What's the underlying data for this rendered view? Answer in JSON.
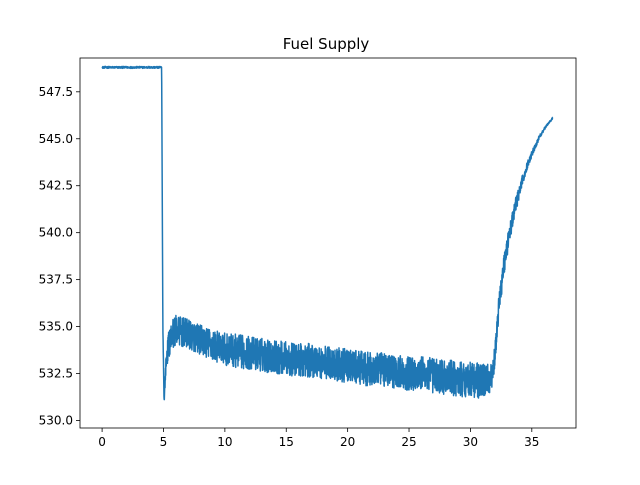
{
  "chart_data": {
    "type": "line",
    "title": "Fuel Supply",
    "xlabel": "",
    "ylabel": "",
    "xlim": [
      -1.8,
      38.6
    ],
    "ylim": [
      529.6,
      549.3
    ],
    "x_ticks": [
      0,
      5,
      10,
      15,
      20,
      25,
      30,
      35
    ],
    "x_tick_labels": [
      "0",
      "5",
      "10",
      "15",
      "20",
      "25",
      "30",
      "35"
    ],
    "y_ticks": [
      530.0,
      532.5,
      535.0,
      537.5,
      540.0,
      542.5,
      545.0,
      547.5
    ],
    "y_tick_labels": [
      "530.0",
      "532.5",
      "535.0",
      "537.5",
      "540.0",
      "542.5",
      "545.0",
      "547.5"
    ],
    "grid": false,
    "legend": "none",
    "line_color": "#1f77b4",
    "series": [
      {
        "x": [
          0,
          1,
          2,
          3,
          4,
          4.7,
          4.85,
          4.95,
          5.05,
          5.2,
          5.4,
          5.7,
          6.0,
          7.0,
          8.0,
          9.0,
          10.0,
          11.0,
          12.0,
          13.0,
          14.0,
          15.0,
          16.0,
          17.0,
          18.0,
          19.0,
          20.0,
          21.0,
          22.0,
          23.0,
          24.0,
          25.0,
          26.0,
          27.0,
          28.0,
          29.0,
          30.0,
          31.0,
          31.8,
          32.0,
          32.3,
          32.7,
          33.2,
          33.7,
          34.2,
          34.7,
          35.2,
          35.7,
          36.2,
          36.7
        ],
        "y": [
          548.8,
          548.8,
          548.8,
          548.8,
          548.8,
          548.8,
          548.8,
          535.0,
          531.0,
          533.0,
          534.0,
          534.6,
          534.8,
          534.6,
          534.3,
          534.0,
          533.8,
          533.7,
          533.6,
          533.5,
          533.4,
          533.3,
          533.2,
          533.2,
          533.1,
          533.0,
          532.9,
          532.8,
          532.7,
          532.7,
          532.6,
          532.5,
          532.5,
          532.4,
          532.3,
          532.2,
          532.2,
          532.1,
          532.3,
          533.5,
          536.0,
          538.2,
          540.0,
          541.5,
          542.7,
          543.7,
          544.5,
          545.2,
          545.7,
          546.1
        ],
        "noise": [
          0.1,
          0.1,
          0.1,
          0.1,
          0.1,
          0.1,
          0.1,
          0.3,
          0.3,
          0.8,
          1.4,
          1.6,
          1.6,
          1.6,
          1.6,
          1.7,
          1.7,
          1.8,
          1.8,
          1.8,
          1.8,
          1.8,
          1.8,
          1.8,
          1.8,
          1.8,
          1.8,
          1.8,
          1.8,
          1.8,
          1.8,
          1.8,
          1.9,
          1.9,
          1.9,
          1.9,
          1.9,
          1.9,
          1.4,
          1.2,
          1.2,
          1.2,
          1.0,
          0.8,
          0.6,
          0.4,
          0.3,
          0.2,
          0.1,
          0.1
        ]
      }
    ]
  }
}
